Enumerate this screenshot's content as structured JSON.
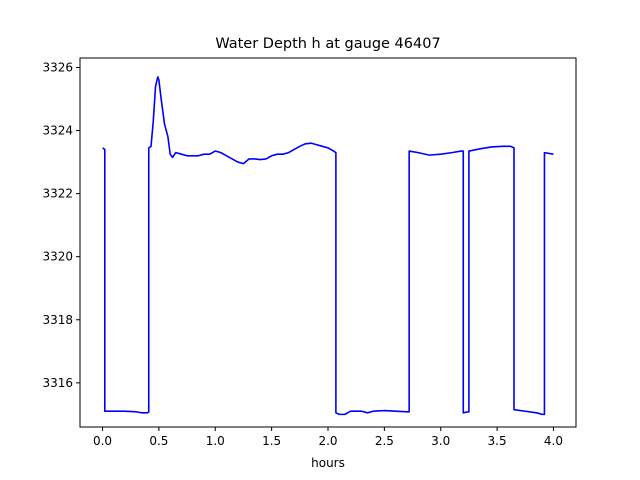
{
  "chart_data": {
    "type": "line",
    "title": "Water Depth h at gauge 46407",
    "xlabel": "hours",
    "ylabel": "",
    "xlim": [
      -0.2,
      4.2
    ],
    "ylim": [
      3314.6,
      3326.3
    ],
    "xticks": [
      0.0,
      0.5,
      1.0,
      1.5,
      2.0,
      2.5,
      3.0,
      3.5,
      4.0
    ],
    "xtick_labels": [
      "0.0",
      "0.5",
      "1.0",
      "1.5",
      "2.0",
      "2.5",
      "3.0",
      "3.5",
      "4.0"
    ],
    "yticks": [
      3316,
      3318,
      3320,
      3322,
      3324,
      3326
    ],
    "ytick_labels": [
      "3316",
      "3318",
      "3320",
      "3322",
      "3324",
      "3326"
    ],
    "grid": false,
    "series": [
      {
        "color": "#0000ff",
        "x": [
          0.0,
          0.02,
          0.02,
          0.2,
          0.3,
          0.35,
          0.4,
          0.41,
          0.41,
          0.43,
          0.45,
          0.47,
          0.49,
          0.5,
          0.52,
          0.55,
          0.58,
          0.6,
          0.62,
          0.65,
          0.7,
          0.75,
          0.8,
          0.85,
          0.9,
          0.95,
          1.0,
          1.05,
          1.1,
          1.15,
          1.2,
          1.25,
          1.3,
          1.35,
          1.4,
          1.45,
          1.5,
          1.55,
          1.6,
          1.65,
          1.7,
          1.75,
          1.8,
          1.85,
          1.9,
          1.95,
          2.0,
          2.05,
          2.07,
          2.07,
          2.1,
          2.15,
          2.2,
          2.25,
          2.3,
          2.35,
          2.4,
          2.5,
          2.6,
          2.7,
          2.72,
          2.72,
          2.8,
          2.9,
          3.0,
          3.1,
          3.18,
          3.2,
          3.2,
          3.24,
          3.25,
          3.25,
          3.35,
          3.45,
          3.55,
          3.62,
          3.65,
          3.65,
          3.75,
          3.85,
          3.9,
          3.92,
          3.92,
          4.0
        ],
        "y": [
          3323.45,
          3323.4,
          3315.1,
          3315.1,
          3315.08,
          3315.05,
          3315.05,
          3315.08,
          3323.45,
          3323.5,
          3324.3,
          3325.4,
          3325.7,
          3325.6,
          3325.0,
          3324.2,
          3323.8,
          3323.25,
          3323.15,
          3323.3,
          3323.25,
          3323.2,
          3323.2,
          3323.2,
          3323.25,
          3323.25,
          3323.35,
          3323.3,
          3323.2,
          3323.1,
          3323.0,
          3322.95,
          3323.1,
          3323.1,
          3323.08,
          3323.1,
          3323.2,
          3323.25,
          3323.25,
          3323.3,
          3323.4,
          3323.5,
          3323.58,
          3323.6,
          3323.55,
          3323.5,
          3323.45,
          3323.35,
          3323.3,
          3315.05,
          3315.0,
          3315.0,
          3315.1,
          3315.1,
          3315.1,
          3315.05,
          3315.1,
          3315.12,
          3315.1,
          3315.08,
          3315.08,
          3323.35,
          3323.3,
          3323.22,
          3323.25,
          3323.3,
          3323.35,
          3323.35,
          3315.05,
          3315.08,
          3315.08,
          3323.35,
          3323.42,
          3323.48,
          3323.5,
          3323.5,
          3323.45,
          3315.15,
          3315.1,
          3315.05,
          3315.0,
          3315.0,
          3323.3,
          3323.25
        ]
      }
    ]
  }
}
